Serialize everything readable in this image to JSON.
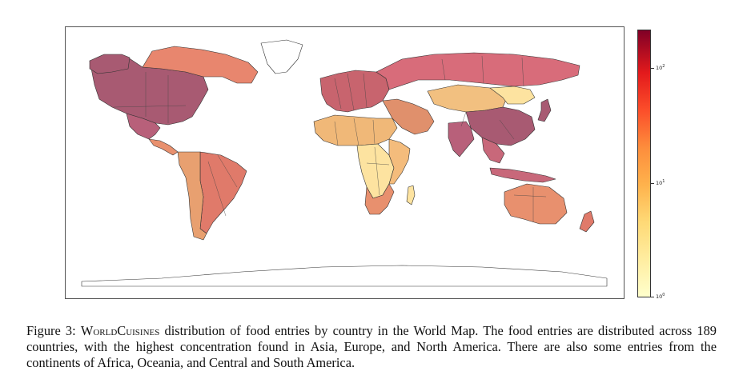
{
  "colorbar": {
    "scale": "log",
    "ticks": [
      {
        "label": "10",
        "exp": "0"
      },
      {
        "label": "10",
        "exp": "1"
      },
      {
        "label": "10",
        "exp": "2"
      }
    ],
    "colors": [
      "#ffffcc",
      "#fed976",
      "#fd8d3c",
      "#e31a1c",
      "#800026"
    ]
  },
  "caption": {
    "figure_label": "Figure 3:",
    "dataset_name": "WorldCuisines",
    "text": " distribution of food entries by country in the World Map.  The food entries are distributed across 189 countries, with the highest concentration found in Asia, Europe, and North America. There are also some entries from the continents of Africa, Oceania, and Central and South America."
  },
  "regions": [
    {
      "name": "North America",
      "color": "#a85a72"
    },
    {
      "name": "Canada North",
      "color": "#e8866e"
    },
    {
      "name": "Alaska",
      "color": "#a85a72"
    },
    {
      "name": "Greenland",
      "color": "#ffffff"
    },
    {
      "name": "Mexico",
      "color": "#b8607a"
    },
    {
      "name": "Central America",
      "color": "#e8906e"
    },
    {
      "name": "South America",
      "color": "#e07a6a"
    },
    {
      "name": "Andes",
      "color": "#e8a070"
    },
    {
      "name": "Europe",
      "color": "#c8646e"
    },
    {
      "name": "Russia",
      "color": "#d86c7a"
    },
    {
      "name": "Middle East",
      "color": "#e0906c"
    },
    {
      "name": "North Africa",
      "color": "#f0b878"
    },
    {
      "name": "Central Africa",
      "color": "#fde3a0"
    },
    {
      "name": "East Africa",
      "color": "#f4bc7c"
    },
    {
      "name": "Southern Africa",
      "color": "#e8906e"
    },
    {
      "name": "Madagascar",
      "color": "#fde3a0"
    },
    {
      "name": "Central Asia",
      "color": "#f2c080"
    },
    {
      "name": "China",
      "color": "#a85a72"
    },
    {
      "name": "Mongolia",
      "color": "#fde3a0"
    },
    {
      "name": "India",
      "color": "#b8607a"
    },
    {
      "name": "Southeast Asia",
      "color": "#c8687a"
    },
    {
      "name": "Indonesia",
      "color": "#c8687a"
    },
    {
      "name": "Japan",
      "color": "#a85a72"
    },
    {
      "name": "Australia",
      "color": "#e8906e"
    },
    {
      "name": "New Zealand",
      "color": "#e07a6a"
    },
    {
      "name": "Antarctica",
      "color": "#ffffff"
    }
  ]
}
